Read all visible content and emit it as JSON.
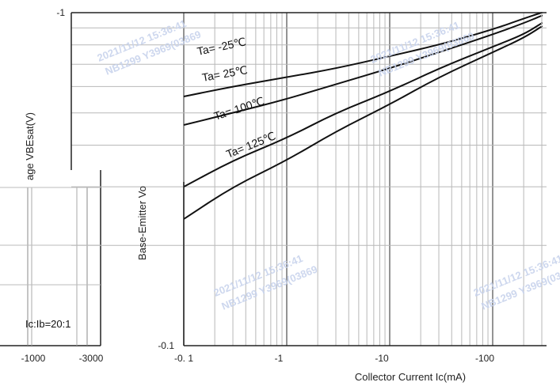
{
  "chart_data": [
    {
      "type": "line",
      "title": "",
      "xlabel": "Collector Current   Ic(mA)",
      "ylabel": "Base-Emitter Voltage   VBEsat(V)",
      "x_scale": "log",
      "y_scale": "log",
      "xlim": [
        -0.1,
        -300
      ],
      "ylim": [
        -0.1,
        -1
      ],
      "x_ticks": [
        "-0. 1",
        "-1",
        "-10",
        "-100"
      ],
      "y_ticks": [
        "-1",
        "-0.1"
      ],
      "annotation": "Ic:Ib=20:1",
      "grid": true,
      "series": [
        {
          "name": "Ta= -25℃",
          "x": [
            -0.1,
            -0.3,
            -1,
            -3,
            -10,
            -30,
            -100,
            -200,
            -300
          ],
          "y": [
            -0.56,
            -0.6,
            -0.64,
            -0.68,
            -0.74,
            -0.8,
            -0.89,
            -0.96,
            -1.0
          ]
        },
        {
          "name": "Ta= 25℃",
          "x": [
            -0.1,
            -0.3,
            -1,
            -3,
            -10,
            -30,
            -100,
            -200,
            -300
          ],
          "y": [
            -0.46,
            -0.5,
            -0.55,
            -0.61,
            -0.68,
            -0.76,
            -0.86,
            -0.93,
            -0.98
          ]
        },
        {
          "name": "Ta= 100℃",
          "x": [
            -0.1,
            -0.3,
            -1,
            -3,
            -10,
            -30,
            -100,
            -200,
            -300
          ],
          "y": [
            -0.3,
            -0.36,
            -0.42,
            -0.5,
            -0.58,
            -0.68,
            -0.79,
            -0.86,
            -0.93
          ]
        },
        {
          "name": "Ta= 125℃",
          "x": [
            -0.1,
            -0.3,
            -1,
            -3,
            -10,
            -30,
            -100,
            -200,
            -300
          ],
          "y": [
            -0.24,
            -0.3,
            -0.36,
            -0.44,
            -0.53,
            -0.64,
            -0.76,
            -0.84,
            -0.91
          ]
        }
      ]
    }
  ],
  "overlay": {
    "ylabel_fragment_left": "age   VBEsat(V)",
    "ylabel_fragment_bottom": "Base-Emitter Vo",
    "left_ticks": [
      "-1000",
      "-3000"
    ]
  },
  "watermark": {
    "line1": "2021/11/12 15:36:41",
    "line2": "NB1299 Y3969(03869"
  },
  "colors": {
    "line": "#111111",
    "grid": "#b8b8b8",
    "frame": "#222222",
    "watermark": "#c8d3ec"
  }
}
